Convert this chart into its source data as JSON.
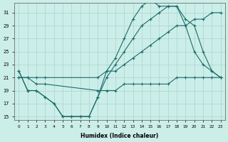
{
  "bg_color": "#cceee8",
  "grid_color": "#aad4d0",
  "line_color": "#1a6b6b",
  "xlabel": "Humidex (Indice chaleur)",
  "xlim": [
    -0.5,
    23.5
  ],
  "ylim": [
    14.5,
    32.5
  ],
  "yticks": [
    15,
    17,
    19,
    21,
    23,
    25,
    27,
    29,
    31
  ],
  "xticks": [
    0,
    1,
    2,
    3,
    4,
    5,
    6,
    7,
    8,
    9,
    10,
    11,
    12,
    13,
    14,
    15,
    16,
    17,
    18,
    19,
    20,
    21,
    22,
    23
  ],
  "series": [
    {
      "x": [
        0,
        1,
        2,
        3,
        4,
        5,
        6,
        7,
        8,
        9,
        10,
        11,
        12,
        13,
        14,
        15,
        16,
        17,
        18,
        19,
        20,
        21,
        22,
        23
      ],
      "y": [
        22,
        19,
        19,
        18,
        17,
        15,
        15,
        15,
        15,
        18,
        21,
        23,
        25,
        27,
        29,
        30,
        31,
        32,
        32,
        29,
        25,
        23,
        22,
        21
      ]
    },
    {
      "x": [
        0,
        1,
        2,
        3,
        4,
        5,
        6,
        7,
        8,
        9,
        10,
        11,
        12,
        13,
        14,
        15,
        16,
        17,
        18,
        19,
        20,
        21,
        22,
        23
      ],
      "y": [
        22,
        19,
        19,
        18,
        17,
        15,
        15,
        15,
        15,
        18,
        22,
        24,
        27,
        30,
        32,
        33,
        32,
        32,
        32,
        30,
        29,
        25,
        22,
        21
      ]
    },
    {
      "x": [
        0,
        1,
        2,
        3,
        9,
        10,
        11,
        12,
        13,
        14,
        15,
        16,
        17,
        18,
        19,
        20,
        21,
        22,
        23
      ],
      "y": [
        21,
        21,
        21,
        21,
        21,
        22,
        22,
        23,
        24,
        25,
        26,
        27,
        28,
        29,
        29,
        30,
        30,
        31,
        31
      ]
    },
    {
      "x": [
        0,
        1,
        2,
        3,
        9,
        10,
        11,
        12,
        13,
        14,
        15,
        16,
        17,
        18,
        19,
        20,
        21,
        22,
        23
      ],
      "y": [
        21,
        21,
        20,
        20,
        19,
        19,
        19,
        20,
        20,
        20,
        20,
        20,
        20,
        21,
        21,
        21,
        21,
        21,
        21
      ]
    }
  ]
}
